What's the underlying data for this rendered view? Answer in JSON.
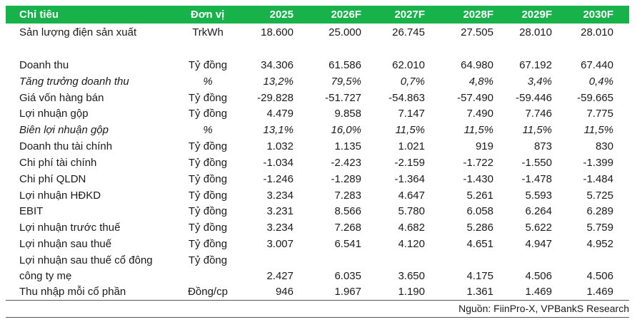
{
  "header": [
    "Chỉ tiêu",
    "Đơn vị",
    "2025",
    "2026F",
    "2027F",
    "2028F",
    "2029F",
    "2030F"
  ],
  "rows": [
    {
      "label": "Sản lượng điện sản xuất",
      "unit": "TrkWh",
      "values": [
        "18.600",
        "25.000",
        "26.745",
        "27.505",
        "28.010",
        "28.010"
      ],
      "italic": false
    },
    {
      "label": "Doanh thu",
      "unit": "Tỷ đồng",
      "values": [
        "34.306",
        "61.586",
        "62.010",
        "64.980",
        "67.192",
        "67.440"
      ],
      "italic": false
    },
    {
      "label": "Tăng trưởng doanh thu",
      "unit": "%",
      "values": [
        "13,2%",
        "79,5%",
        "0,7%",
        "4,8%",
        "3,4%",
        "0,4%"
      ],
      "italic": true
    },
    {
      "label": "Giá vốn hàng bán",
      "unit": "Tỷ đồng",
      "values": [
        "-29.828",
        "-51.727",
        "-54.863",
        "-57.490",
        "-59.446",
        "-59.665"
      ],
      "italic": false
    },
    {
      "label": "Lợi nhuận gộp",
      "unit": "Tỷ đồng",
      "values": [
        "4.479",
        "9.858",
        "7.147",
        "7.490",
        "7.746",
        "7.775"
      ],
      "italic": false
    },
    {
      "label": "Biên lợi nhuận gộp",
      "unit": "%",
      "values": [
        "13,1%",
        "16,0%",
        "11,5%",
        "11,5%",
        "11,5%",
        "11,5%"
      ],
      "italic": true
    },
    {
      "label": "Doanh thu tài chính",
      "unit": "Tỷ đồng",
      "values": [
        "1.032",
        "1.135",
        "1.021",
        "919",
        "873",
        "830"
      ],
      "italic": false
    },
    {
      "label": "Chi phí tài chính",
      "unit": "Tỷ đồng",
      "values": [
        "-1.034",
        "-2.423",
        "-2.159",
        "-1.722",
        "-1.550",
        "-1.399"
      ],
      "italic": false
    },
    {
      "label": "Chi phí QLDN",
      "unit": "Tỷ đồng",
      "values": [
        "-1.246",
        "-1.289",
        "-1.364",
        "-1.430",
        "-1.478",
        "-1.484"
      ],
      "italic": false
    },
    {
      "label": "Lợi nhuận HĐKD",
      "unit": "Tỷ đồng",
      "values": [
        "3.234",
        "7.283",
        "4.647",
        "5.261",
        "5.593",
        "5.725"
      ],
      "italic": false
    },
    {
      "label": "EBIT",
      "unit": "Tỷ đồng",
      "values": [
        "3.231",
        "8.566",
        "5.780",
        "6.058",
        "6.264",
        "6.289"
      ],
      "italic": false
    },
    {
      "label": "Lợi nhuận trước thuế",
      "unit": "Tỷ đồng",
      "values": [
        "3.234",
        "7.268",
        "4.682",
        "5.286",
        "5.622",
        "5.759"
      ],
      "italic": false
    },
    {
      "label": "Lợi nhuận sau thuế",
      "unit": "Tỷ đồng",
      "values": [
        "3.007",
        "6.541",
        "4.120",
        "4.651",
        "4.947",
        "4.952"
      ],
      "italic": false
    },
    {
      "label": "Lợi nhuận sau thuế cổ đông",
      "unit": "Tỷ đồng",
      "values": [
        "",
        "",
        "",
        "",
        "",
        ""
      ],
      "italic": false
    },
    {
      "label": "công ty mẹ",
      "unit": "",
      "values": [
        "2.427",
        "6.035",
        "3.650",
        "4.175",
        "4.506",
        "4.506"
      ],
      "italic": false
    },
    {
      "label": "Thu nhập mỗi cổ phần",
      "unit": "Đồng/cp",
      "values": [
        "946",
        "1.967",
        "1.190",
        "1.361",
        "1.469",
        "1.469"
      ],
      "italic": false
    }
  ],
  "source": "Nguồn: FiinPro-X, VPBankS Research",
  "colors": {
    "header_bg": "#17b24a",
    "header_text": "#ffffff"
  }
}
